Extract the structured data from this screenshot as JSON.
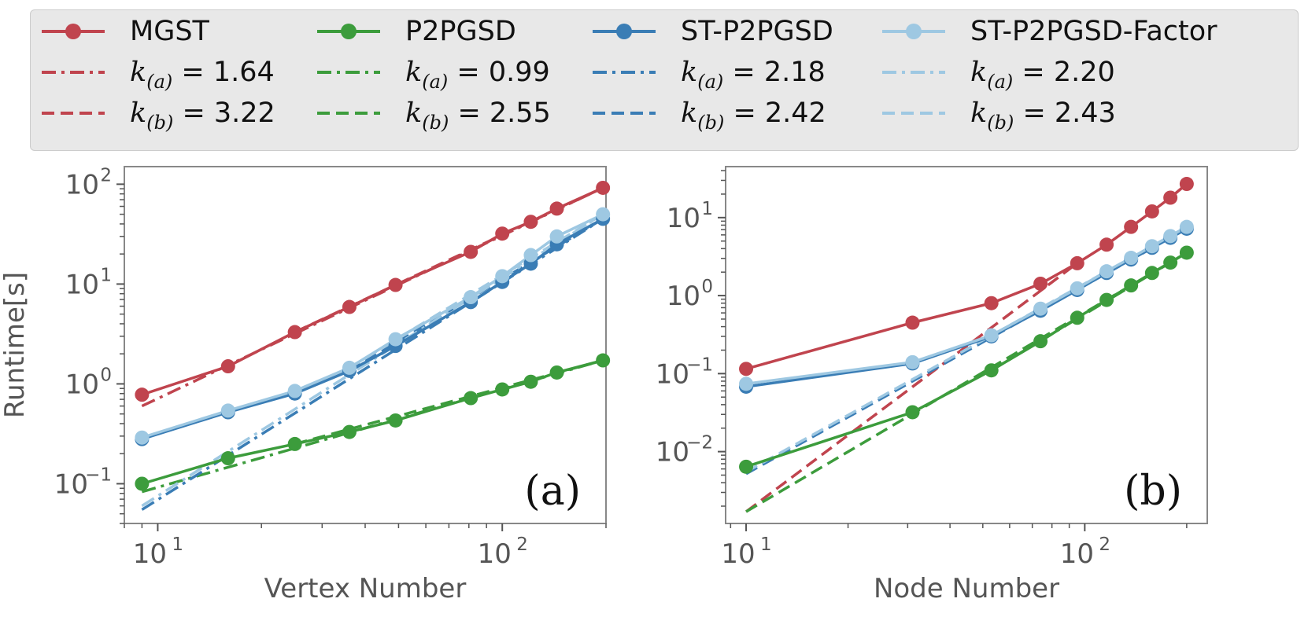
{
  "legend": {
    "series": [
      {
        "name": "MGST",
        "color": "#c0444e",
        "ka_prefix": "k",
        "ka_sub": "(a)",
        "ka_value": " = 1.64",
        "kb_prefix": "k",
        "kb_sub": "(b)",
        "kb_value": " = 3.22"
      },
      {
        "name": "P2PGSD",
        "color": "#3c9c3c",
        "ka_prefix": "k",
        "ka_sub": "(a)",
        "ka_value": " = 0.99",
        "kb_prefix": "k",
        "kb_sub": "(b)",
        "kb_value": " = 2.55"
      },
      {
        "name": "ST-P2PGSD",
        "color": "#3a7db5",
        "ka_prefix": "k",
        "ka_sub": "(a)",
        "ka_value": " = 2.18",
        "kb_prefix": "k",
        "kb_sub": "(b)",
        "kb_value": " = 2.42"
      },
      {
        "name": "ST-P2PGSD-Factor",
        "color": "#9ec8e2",
        "ka_prefix": "k",
        "ka_sub": "(a)",
        "ka_value": " = 2.20",
        "kb_prefix": "k",
        "kb_sub": "(b)",
        "kb_value": " = 2.43"
      }
    ]
  },
  "chart_data": [
    {
      "type": "line",
      "panel_label": "(a)",
      "xlabel": "Vertex Number",
      "ylabel": "Runtime[s]",
      "xscale": "log",
      "yscale": "log",
      "xlim": [
        8,
        200
      ],
      "ylim": [
        0.04,
        150
      ],
      "x_ticks": [
        {
          "value": 10,
          "base": "10",
          "exp": "1"
        },
        {
          "value": 100,
          "base": "10",
          "exp": "2"
        }
      ],
      "y_ticks": [
        {
          "value": 0.1,
          "base": "10",
          "exp": "−1"
        },
        {
          "value": 1,
          "base": "10",
          "exp": "0"
        },
        {
          "value": 10,
          "base": "10",
          "exp": "1"
        },
        {
          "value": 100,
          "base": "10",
          "exp": "2"
        }
      ],
      "series": [
        {
          "name": "MGST",
          "color": "#c0444e",
          "x": [
            9,
            16,
            25,
            36,
            49,
            81,
            100,
            121,
            144,
            196
          ],
          "y": [
            0.78,
            1.5,
            3.3,
            5.9,
            9.8,
            21,
            32,
            42,
            57,
            92
          ]
        },
        {
          "name": "P2PGSD",
          "color": "#3c9c3c",
          "x": [
            9,
            16,
            25,
            36,
            49,
            81,
            100,
            121,
            144,
            196
          ],
          "y": [
            0.1,
            0.18,
            0.25,
            0.33,
            0.43,
            0.72,
            0.88,
            1.05,
            1.3,
            1.72
          ]
        },
        {
          "name": "ST-P2PGSD",
          "color": "#3a7db5",
          "x": [
            9,
            16,
            25,
            36,
            49,
            81,
            100,
            121,
            144,
            196
          ],
          "y": [
            0.28,
            0.52,
            0.8,
            1.35,
            2.4,
            6.6,
            10.5,
            16,
            25,
            45
          ]
        },
        {
          "name": "ST-P2PGSD-Factor",
          "color": "#9ec8e2",
          "x": [
            9,
            16,
            25,
            36,
            49,
            81,
            100,
            121,
            144,
            196
          ],
          "y": [
            0.29,
            0.54,
            0.85,
            1.45,
            2.8,
            7.4,
            12,
            19.5,
            30,
            50
          ]
        }
      ],
      "fits": [
        {
          "series": "MGST",
          "color": "#c0444e",
          "style": "dashdot",
          "x": [
            9,
            196
          ],
          "y": [
            0.6,
            92
          ]
        },
        {
          "series": "MGST",
          "color": "#c0444e",
          "style": "dashed",
          "x": [
            25,
            196
          ],
          "y": [
            3.3,
            92
          ]
        },
        {
          "series": "P2PGSD",
          "color": "#3c9c3c",
          "style": "dashdot",
          "x": [
            9,
            196
          ],
          "y": [
            0.083,
            1.72
          ]
        },
        {
          "series": "P2PGSD",
          "color": "#3c9c3c",
          "style": "dashed",
          "x": [
            25,
            196
          ],
          "y": [
            0.25,
            1.72
          ]
        },
        {
          "series": "ST-P2PGSD",
          "color": "#3a7db5",
          "style": "dashdot",
          "x": [
            9,
            196
          ],
          "y": [
            0.055,
            45
          ]
        },
        {
          "series": "ST-P2PGSD",
          "color": "#3a7db5",
          "style": "dashed",
          "x": [
            36,
            196
          ],
          "y": [
            1.35,
            45
          ]
        },
        {
          "series": "ST-P2PGSD-Factor",
          "color": "#9ec8e2",
          "style": "dashdot",
          "x": [
            9,
            196
          ],
          "y": [
            0.06,
            50
          ]
        },
        {
          "series": "ST-P2PGSD-Factor",
          "color": "#9ec8e2",
          "style": "dashed",
          "x": [
            36,
            196
          ],
          "y": [
            1.45,
            50
          ]
        }
      ]
    },
    {
      "type": "line",
      "panel_label": "(b)",
      "xlabel": "Node Number",
      "ylabel": "",
      "xscale": "log",
      "yscale": "log",
      "xlim": [
        8.7,
        230
      ],
      "ylim": [
        0.0012,
        45
      ],
      "x_ticks": [
        {
          "value": 10,
          "base": "10",
          "exp": "1"
        },
        {
          "value": 100,
          "base": "10",
          "exp": "2"
        }
      ],
      "y_ticks": [
        {
          "value": 0.01,
          "base": "10",
          "exp": "−2"
        },
        {
          "value": 0.1,
          "base": "10",
          "exp": "−1"
        },
        {
          "value": 1,
          "base": "10",
          "exp": "0"
        },
        {
          "value": 10,
          "base": "10",
          "exp": "1"
        }
      ],
      "series": [
        {
          "name": "MGST",
          "color": "#c0444e",
          "x": [
            10,
            31,
            53,
            74,
            95,
            116,
            137,
            158,
            179,
            200
          ],
          "y": [
            0.115,
            0.45,
            0.8,
            1.42,
            2.6,
            4.5,
            7.6,
            12,
            18,
            27
          ]
        },
        {
          "name": "P2PGSD",
          "color": "#3c9c3c",
          "x": [
            10,
            31,
            53,
            74,
            95,
            116,
            137,
            158,
            179,
            200
          ],
          "y": [
            0.0064,
            0.032,
            0.11,
            0.26,
            0.52,
            0.88,
            1.35,
            1.95,
            2.65,
            3.55
          ]
        },
        {
          "name": "ST-P2PGSD",
          "color": "#3a7db5",
          "x": [
            10,
            31,
            53,
            74,
            95,
            116,
            137,
            158,
            179,
            200
          ],
          "y": [
            0.068,
            0.135,
            0.3,
            0.64,
            1.18,
            1.95,
            2.9,
            4.1,
            5.5,
            7.2
          ]
        },
        {
          "name": "ST-P2PGSD-Factor",
          "color": "#9ec8e2",
          "x": [
            10,
            31,
            53,
            74,
            95,
            116,
            137,
            158,
            179,
            200
          ],
          "y": [
            0.074,
            0.14,
            0.31,
            0.68,
            1.24,
            2.05,
            3.05,
            4.3,
            5.8,
            7.6
          ]
        }
      ],
      "fits": [
        {
          "series": "MGST",
          "color": "#c0444e",
          "style": "dashed",
          "x": [
            10,
            95
          ],
          "y": [
            0.0017,
            2.6
          ]
        },
        {
          "series": "P2PGSD",
          "color": "#3c9c3c",
          "style": "dashed",
          "x": [
            10,
            200
          ],
          "y": [
            0.0017,
            3.55
          ]
        },
        {
          "series": "P2PGSD",
          "color": "#3c9c3c",
          "style": "dashdot",
          "x": [
            53,
            200
          ],
          "y": [
            0.11,
            3.55
          ]
        },
        {
          "series": "ST-P2PGSD",
          "color": "#3a7db5",
          "style": "dashed",
          "x": [
            10,
            200
          ],
          "y": [
            0.0052,
            7.2
          ]
        },
        {
          "series": "ST-P2PGSD-Factor",
          "color": "#9ec8e2",
          "style": "dashed",
          "x": [
            10,
            200
          ],
          "y": [
            0.0055,
            7.6
          ]
        }
      ]
    }
  ]
}
